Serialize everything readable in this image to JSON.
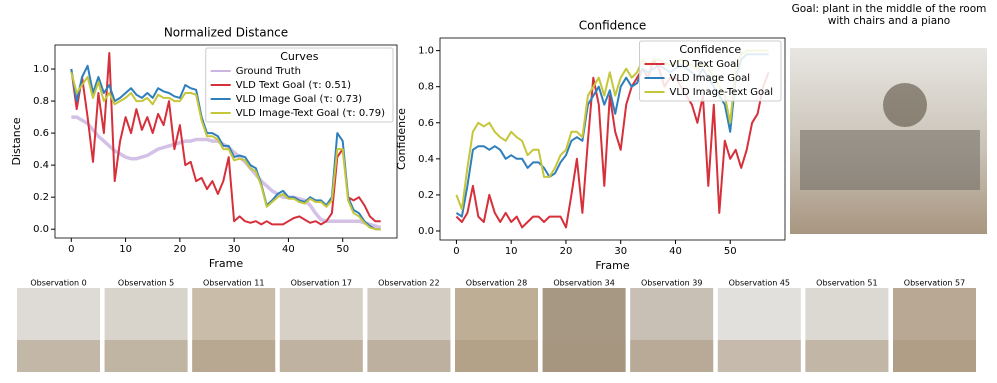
{
  "chart_data": [
    {
      "type": "line",
      "title": "Normalized Distance",
      "x_label": "Frame",
      "y_label": "Distance",
      "x": [
        0,
        1,
        2,
        3,
        4,
        5,
        6,
        7,
        8,
        9,
        10,
        11,
        12,
        13,
        14,
        15,
        16,
        17,
        18,
        19,
        20,
        21,
        22,
        23,
        24,
        25,
        26,
        27,
        28,
        29,
        30,
        31,
        32,
        33,
        34,
        35,
        36,
        37,
        38,
        39,
        40,
        41,
        42,
        43,
        44,
        45,
        46,
        47,
        48,
        49,
        50,
        51,
        52,
        53,
        54,
        55,
        56,
        57
      ],
      "xlim": [
        -3,
        60
      ],
      "xticks": [
        0,
        10,
        20,
        30,
        40,
        50
      ],
      "ylim": [
        -0.055,
        1.15
      ],
      "yticks": [
        {
          "value": 0,
          "label": "0.0"
        },
        0.2,
        0.4,
        0.6,
        0.8,
        {
          "value": 1,
          "label": "1.0"
        }
      ],
      "grid": false,
      "legend": "upper right",
      "legend_title": "Curves",
      "series": [
        {
          "name": "Ground Truth",
          "color": "#cbb6e2",
          "values": [
            0.7,
            0.7,
            0.68,
            0.66,
            0.62,
            0.58,
            0.55,
            0.52,
            0.49,
            0.47,
            0.45,
            0.44,
            0.44,
            0.45,
            0.46,
            0.48,
            0.5,
            0.51,
            0.52,
            0.53,
            0.54,
            0.55,
            0.55,
            0.56,
            0.56,
            0.56,
            0.55,
            0.55,
            0.53,
            0.51,
            0.48,
            0.45,
            0.42,
            0.38,
            0.34,
            0.3,
            0.27,
            0.24,
            0.22,
            0.2,
            0.2,
            0.2,
            0.19,
            0.18,
            0.15,
            0.1,
            0.06,
            0.05,
            0.05,
            0.05,
            0.05,
            0.05,
            0.05,
            0.05,
            0.04,
            0.03,
            0.02,
            0.01
          ]
        },
        {
          "name": "VLD Text Goal (τ: 0.51)",
          "color": "#d6303b",
          "values": [
            1.0,
            0.75,
            0.95,
            0.7,
            0.42,
            0.85,
            0.6,
            1.1,
            0.3,
            0.55,
            0.7,
            0.6,
            0.75,
            0.62,
            0.7,
            0.6,
            0.72,
            0.65,
            0.8,
            0.5,
            0.65,
            0.4,
            0.42,
            0.3,
            0.32,
            0.25,
            0.3,
            0.22,
            0.3,
            0.45,
            0.05,
            0.08,
            0.05,
            0.04,
            0.05,
            0.03,
            0.05,
            0.03,
            0.03,
            0.03,
            0.05,
            0.07,
            0.08,
            0.06,
            0.04,
            0.05,
            0.03,
            0.05,
            0.1,
            0.45,
            0.5,
            0.2,
            0.18,
            0.2,
            0.15,
            0.08,
            0.05,
            0.05
          ]
        },
        {
          "name": "VLD Image Goal (τ: 0.73)",
          "color": "#2f7fbd",
          "values": [
            1.0,
            0.8,
            0.95,
            1.02,
            0.85,
            0.95,
            0.85,
            0.9,
            0.8,
            0.82,
            0.85,
            0.88,
            0.84,
            0.82,
            0.85,
            0.82,
            0.88,
            0.86,
            0.85,
            0.83,
            0.82,
            0.9,
            0.88,
            0.87,
            0.7,
            0.6,
            0.6,
            0.58,
            0.52,
            0.52,
            0.45,
            0.46,
            0.45,
            0.4,
            0.38,
            0.28,
            0.15,
            0.18,
            0.22,
            0.24,
            0.2,
            0.2,
            0.18,
            0.17,
            0.2,
            0.18,
            0.18,
            0.15,
            0.2,
            0.6,
            0.55,
            0.2,
            0.12,
            0.1,
            0.05,
            0.02,
            0.0,
            0.0
          ]
        },
        {
          "name": "VLD Image-Text Goal (τ: 0.79)",
          "color": "#c5c639",
          "values": [
            0.98,
            0.85,
            0.9,
            0.95,
            0.82,
            0.92,
            0.8,
            0.85,
            0.78,
            0.8,
            0.82,
            0.85,
            0.8,
            0.8,
            0.82,
            0.78,
            0.84,
            0.82,
            0.82,
            0.8,
            0.8,
            0.85,
            0.85,
            0.84,
            0.68,
            0.58,
            0.58,
            0.56,
            0.5,
            0.5,
            0.43,
            0.44,
            0.43,
            0.38,
            0.36,
            0.27,
            0.14,
            0.17,
            0.2,
            0.22,
            0.19,
            0.19,
            0.17,
            0.16,
            0.19,
            0.17,
            0.17,
            0.14,
            0.18,
            0.5,
            0.5,
            0.18,
            0.1,
            0.08,
            0.04,
            0.01,
            0.0,
            0.0
          ]
        }
      ]
    },
    {
      "type": "line",
      "title": "Confidence",
      "x_label": "Frame",
      "y_label": "Confidence",
      "x": [
        0,
        1,
        2,
        3,
        4,
        5,
        6,
        7,
        8,
        9,
        10,
        11,
        12,
        13,
        14,
        15,
        16,
        17,
        18,
        19,
        20,
        21,
        22,
        23,
        24,
        25,
        26,
        27,
        28,
        29,
        30,
        31,
        32,
        33,
        34,
        35,
        36,
        37,
        38,
        39,
        40,
        41,
        42,
        43,
        44,
        45,
        46,
        47,
        48,
        49,
        50,
        51,
        52,
        53,
        54,
        55,
        56,
        57
      ],
      "xlim": [
        -3,
        60
      ],
      "xticks": [
        0,
        10,
        20,
        30,
        40,
        50
      ],
      "ylim": [
        -0.05,
        1.07
      ],
      "yticks": [
        {
          "value": 0,
          "label": "0.0"
        },
        0.2,
        0.4,
        0.6,
        0.8,
        {
          "value": 1,
          "label": "1.0"
        }
      ],
      "grid": false,
      "legend": "upper right",
      "legend_title": "Confidence",
      "series": [
        {
          "name": "VLD Text Goal",
          "color": "#d6303b",
          "values": [
            0.08,
            0.05,
            0.1,
            0.25,
            0.08,
            0.05,
            0.2,
            0.1,
            0.05,
            0.1,
            0.05,
            0.08,
            0.02,
            0.05,
            0.08,
            0.08,
            0.05,
            0.08,
            0.08,
            0.08,
            0.02,
            0.2,
            0.4,
            0.1,
            0.5,
            0.85,
            0.7,
            0.25,
            0.75,
            0.55,
            0.45,
            0.7,
            0.8,
            0.85,
            0.9,
            0.85,
            0.95,
            0.9,
            0.8,
            0.85,
            0.85,
            0.8,
            0.75,
            0.7,
            0.6,
            0.75,
            0.25,
            0.7,
            0.1,
            0.5,
            0.4,
            0.45,
            0.35,
            0.45,
            0.6,
            0.65,
            0.8,
            0.88
          ]
        },
        {
          "name": "VLD Image Goal",
          "color": "#2f7fbd",
          "values": [
            0.1,
            0.08,
            0.25,
            0.45,
            0.47,
            0.47,
            0.45,
            0.47,
            0.45,
            0.4,
            0.42,
            0.4,
            0.4,
            0.35,
            0.38,
            0.38,
            0.35,
            0.3,
            0.32,
            0.38,
            0.42,
            0.5,
            0.52,
            0.5,
            0.7,
            0.75,
            0.8,
            0.7,
            0.78,
            0.65,
            0.8,
            0.85,
            0.8,
            0.82,
            0.9,
            0.88,
            0.9,
            0.92,
            0.9,
            0.88,
            0.9,
            0.92,
            0.9,
            0.88,
            0.85,
            0.9,
            0.85,
            0.8,
            0.75,
            0.7,
            0.55,
            0.85,
            0.95,
            0.98,
            0.98,
            0.98,
            0.98,
            0.98
          ]
        },
        {
          "name": "VLD Image-Text Goal",
          "color": "#c5c639",
          "values": [
            0.2,
            0.12,
            0.35,
            0.55,
            0.6,
            0.58,
            0.6,
            0.55,
            0.52,
            0.5,
            0.55,
            0.52,
            0.5,
            0.42,
            0.45,
            0.45,
            0.3,
            0.3,
            0.35,
            0.42,
            0.45,
            0.55,
            0.55,
            0.52,
            0.75,
            0.8,
            0.85,
            0.75,
            0.88,
            0.75,
            0.85,
            0.9,
            0.85,
            0.88,
            0.95,
            0.92,
            0.95,
            0.95,
            0.93,
            0.92,
            0.93,
            0.95,
            0.93,
            0.92,
            0.9,
            0.93,
            0.9,
            0.85,
            0.8,
            0.75,
            0.6,
            0.9,
            0.98,
            1.0,
            1.0,
            1.0,
            1.0,
            1.0
          ]
        }
      ]
    }
  ],
  "goal": {
    "caption": "Goal: plant in the middle of the room with chairs and a piano"
  },
  "observations": [
    "Observation 0",
    "Observation 5",
    "Observation 11",
    "Observation 17",
    "Observation 22",
    "Observation 28",
    "Observation 34",
    "Observation 39",
    "Observation 45",
    "Observation 51",
    "Observation 57"
  ]
}
